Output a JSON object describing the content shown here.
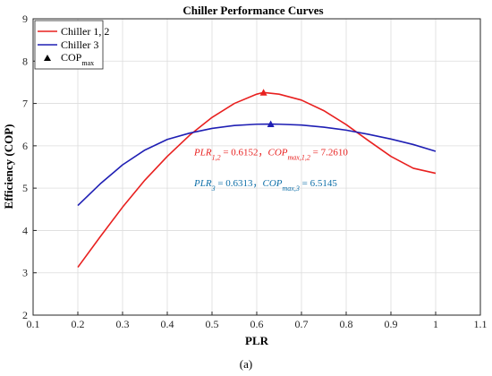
{
  "chart_data": {
    "type": "line",
    "title": "Chiller Performance Curves",
    "xlabel": "PLR",
    "ylabel": "Efficiency (COP)",
    "caption": "(a)",
    "xlim": [
      0.1,
      1.1
    ],
    "ylim": [
      2,
      9
    ],
    "xticks": [
      0.1,
      0.2,
      0.3,
      0.4,
      0.5,
      0.6,
      0.7,
      0.8,
      0.9,
      1,
      1.1
    ],
    "xtick_labels": [
      "0.1",
      "0.2",
      "0.3",
      "0.4",
      "0.5",
      "0.6",
      "0.7",
      "0.8",
      "0.9",
      "1",
      "1.1"
    ],
    "yticks": [
      2,
      3,
      4,
      5,
      6,
      7,
      8,
      9
    ],
    "ytick_labels": [
      "2",
      "3",
      "4",
      "5",
      "6",
      "7",
      "8",
      "9"
    ],
    "grid": true,
    "legend_position": "top-left",
    "legend": {
      "series1": "Chiller 1, 2",
      "series2": "Chiller 3",
      "marker_main": "COP",
      "marker_sub": "max"
    },
    "series": [
      {
        "name": "Chiller 1, 2",
        "color": "#e8201f",
        "x": [
          0.2,
          0.25,
          0.3,
          0.35,
          0.4,
          0.45,
          0.5,
          0.55,
          0.6,
          0.6152,
          0.65,
          0.7,
          0.75,
          0.8,
          0.85,
          0.9,
          0.95,
          1.0
        ],
        "y": [
          3.13,
          3.85,
          4.55,
          5.19,
          5.75,
          6.25,
          6.67,
          7.0,
          7.22,
          7.26,
          7.22,
          7.08,
          6.83,
          6.5,
          6.12,
          5.75,
          5.47,
          5.35
        ]
      },
      {
        "name": "Chiller 3",
        "color": "#1f1fb4",
        "x": [
          0.2,
          0.25,
          0.3,
          0.35,
          0.4,
          0.45,
          0.5,
          0.55,
          0.6,
          0.6313,
          0.65,
          0.7,
          0.75,
          0.8,
          0.85,
          0.9,
          0.95,
          1.0
        ],
        "y": [
          4.59,
          5.1,
          5.55,
          5.9,
          6.15,
          6.3,
          6.41,
          6.48,
          6.51,
          6.5145,
          6.51,
          6.49,
          6.44,
          6.37,
          6.27,
          6.16,
          6.03,
          5.87
        ]
      }
    ],
    "max_points": [
      {
        "series": "Chiller 1, 2",
        "x": 0.6152,
        "y": 7.261,
        "color": "#e8201f"
      },
      {
        "series": "Chiller 3",
        "x": 0.6313,
        "y": 6.5145,
        "color": "#1f1fb4"
      }
    ],
    "annotations": {
      "a1": {
        "color": "#e8201f",
        "x": 0.46,
        "y": 5.78,
        "var1": "PLR",
        "sub1": "1,2",
        "eq1": " = 0.6152",
        "sep": "，",
        "var2": "COP",
        "sub2": "max,1,2",
        "eq2": " = 7.2610"
      },
      "a2": {
        "color": "#0e6fa8",
        "x": 0.46,
        "y": 5.05,
        "var1": "PLR",
        "sub1": "3",
        "eq1": " = 0.6313",
        "sep": "，",
        "var2": "COP",
        "sub2": "max,3",
        "eq2": " = 6.5145"
      }
    }
  }
}
